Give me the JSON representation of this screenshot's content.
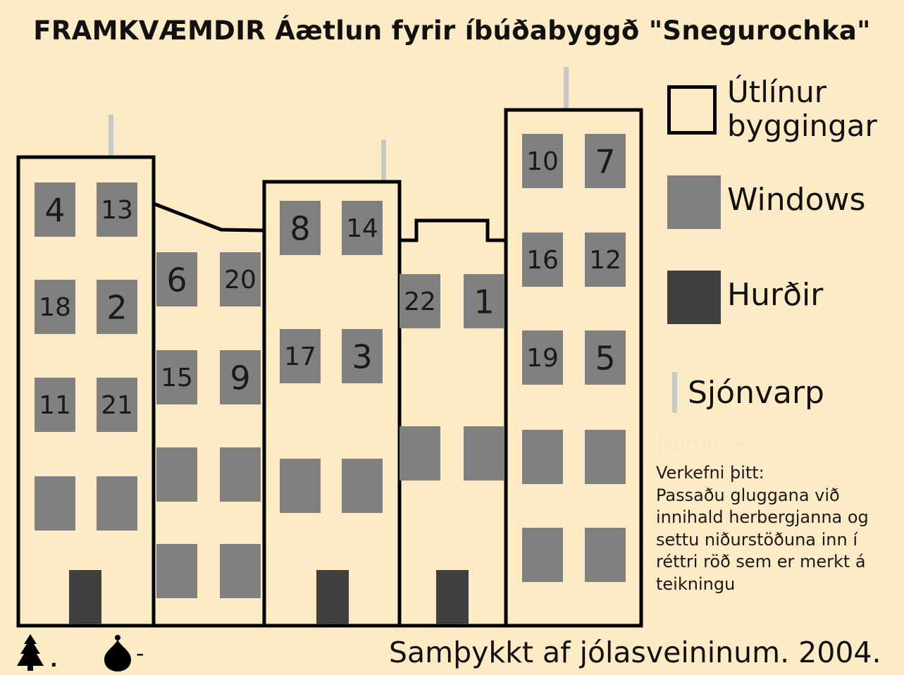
{
  "title": "FRAMKVÆMDIR Áætlun fyrir íbúðabyggð \"Snegurochka\"",
  "legend": {
    "outline": {
      "label_line1": "Útlínur",
      "label_line2": "byggingar",
      "icon": "outline-square"
    },
    "windows": {
      "label": "Windows",
      "color": "#808080"
    },
    "doors": {
      "label": "Hurðir",
      "color": "#404040"
    },
    "antenna": {
      "label": "Sjónvarp",
      "color": "#c8c8c8"
    }
  },
  "hint": "Norðir +",
  "task": {
    "heading": "Verkefni þitt:",
    "body": "Passaðu gluggana við innihald herbergjanna og settu niðurstöðuna inn í réttri röð sem er merkt á teikningu"
  },
  "footer": {
    "approval": "Samþykkt af jólasveininum. 2004.",
    "compass_tree_suffix": ".",
    "compass_drop_suffix": "-"
  },
  "colors": {
    "background": "#fdebc6",
    "window": "#808080",
    "door": "#404040",
    "antenna": "#c8c8c8",
    "outline": "#000000"
  },
  "windows": {
    "b1": [
      [
        "4",
        "13"
      ],
      [
        "18",
        "2"
      ],
      [
        "11",
        "21"
      ],
      [
        "",
        ""
      ]
    ],
    "b2": [
      [
        "6",
        "20"
      ],
      [
        "15",
        "9"
      ],
      [
        "",
        ""
      ],
      [
        "",
        ""
      ]
    ],
    "b3": [
      [
        "8",
        "14"
      ],
      [
        "17",
        "3"
      ],
      [
        "",
        ""
      ]
    ],
    "b4": [
      [
        "22",
        "1"
      ],
      [
        "",
        ""
      ]
    ],
    "b5": [
      [
        "10",
        "7"
      ],
      [
        "16",
        "12"
      ],
      [
        "19",
        "5"
      ],
      [
        "",
        ""
      ],
      [
        "",
        ""
      ]
    ]
  }
}
